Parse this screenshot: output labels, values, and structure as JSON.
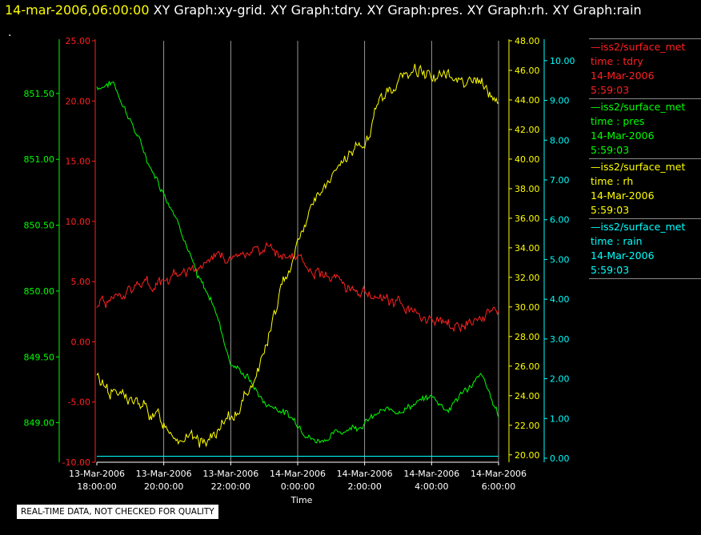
{
  "header": {
    "timestamp": "14-mar-2006,06:00:00",
    "graph_labels": "XY Graph:xy-grid.  XY Graph:tdry.  XY Graph:pres.  XY Graph:rh.  XY Graph:rain",
    "dot": "."
  },
  "colors": {
    "tdry": "#ff2020",
    "pres": "#00ff00",
    "rh": "#ffff00",
    "rain": "#00ffff",
    "grid": "#bbbbbb"
  },
  "legend": [
    {
      "source": "iss2/surface_met",
      "label": "time : tdry",
      "date": "14-Mar-2006",
      "time": "5:59:03"
    },
    {
      "source": "iss2/surface_met",
      "label": "time : pres",
      "date": "14-Mar-2006",
      "time": "5:59:03"
    },
    {
      "source": "iss2/surface_met",
      "label": "time : rh",
      "date": "14-Mar-2006",
      "time": "5:59:03"
    },
    {
      "source": "iss2/surface_met",
      "label": "time : rain",
      "date": "14-Mar-2006",
      "time": "5:59:03"
    }
  ],
  "note": "REAL-TIME DATA, NOT CHECKED FOR QUALITY",
  "chart_data": {
    "type": "line",
    "xlabel": "Time",
    "xlim": [
      "13-Mar-2006 18:00:00",
      "14-Mar-2006 6:00:00"
    ],
    "x_ticks": [
      {
        "d": "13-Mar-2006",
        "t": "18:00:00"
      },
      {
        "d": "13-Mar-2006",
        "t": "20:00:00"
      },
      {
        "d": "13-Mar-2006",
        "t": "22:00:00"
      },
      {
        "d": "14-Mar-2006",
        "t": "0:00:00"
      },
      {
        "d": "14-Mar-2006",
        "t": "2:00:00"
      },
      {
        "d": "14-Mar-2006",
        "t": "4:00:00"
      },
      {
        "d": "14-Mar-2006",
        "t": "6:00:00"
      }
    ],
    "grid": "vertical",
    "axes": {
      "tdry": {
        "range": [
          -10,
          25
        ],
        "ticks": [
          "-10.00",
          "-5.00",
          "0.00",
          "5.00",
          "10.00",
          "15.00",
          "20.00",
          "25.00"
        ]
      },
      "pres": {
        "range": [
          848.7,
          851.9
        ],
        "ticks": [
          "849.00",
          "849.50",
          "850.00",
          "850.50",
          "851.00",
          "851.50"
        ]
      },
      "rh": {
        "range": [
          19.5,
          48.0
        ],
        "ticks": [
          "20.00",
          "22.00",
          "24.00",
          "26.00",
          "28.00",
          "30.00",
          "32.00",
          "34.00",
          "36.00",
          "38.00",
          "40.00",
          "42.00",
          "44.00",
          "46.00",
          "48.00"
        ]
      },
      "rain": {
        "range": [
          -0.1,
          10.5
        ],
        "ticks": [
          "0.00",
          "1.00",
          "2.00",
          "3.00",
          "4.00",
          "5.00",
          "6.00",
          "7.00",
          "8.00",
          "9.00",
          "10.00"
        ]
      }
    },
    "x_hours": [
      0,
      0.5,
      1,
      1.5,
      2,
      2.5,
      3,
      3.5,
      4,
      4.5,
      5,
      5.5,
      6,
      6.5,
      7,
      7.5,
      8,
      8.5,
      9,
      9.5,
      10,
      10.5,
      11,
      11.5,
      12
    ],
    "series": [
      {
        "name": "tdry",
        "values": [
          3.0,
          3.7,
          4.3,
          4.8,
          5.2,
          5.8,
          6.2,
          6.7,
          7.0,
          7.4,
          7.7,
          7.4,
          7.0,
          6.0,
          5.3,
          4.6,
          4.0,
          3.5,
          3.0,
          2.6,
          1.6,
          1.3,
          1.5,
          1.8,
          2.4
        ]
      },
      {
        "name": "pres",
        "values": [
          851.55,
          851.58,
          851.3,
          851.0,
          850.75,
          850.5,
          850.1,
          849.9,
          849.45,
          849.35,
          849.15,
          849.1,
          849.0,
          848.86,
          848.9,
          848.96,
          849.0,
          849.08,
          849.1,
          849.14,
          849.2,
          849.1,
          849.25,
          849.35,
          849.05
        ]
      },
      {
        "name": "rh",
        "values": [
          25.2,
          24.3,
          23.7,
          23.0,
          22.2,
          21.2,
          20.8,
          21.3,
          22.3,
          24.2,
          27.0,
          31.0,
          34.5,
          37.3,
          38.5,
          40.2,
          41.0,
          44.0,
          45.3,
          46.0,
          45.8,
          45.5,
          45.5,
          45.0,
          43.8
        ]
      },
      {
        "name": "rain",
        "values": [
          0.05,
          0.05,
          0.05,
          0.05,
          0.05,
          0.05,
          0.05,
          0.05,
          0.05,
          0.05,
          0.05,
          0.05,
          0.05,
          0.05,
          0.05,
          0.05,
          0.05,
          0.05,
          0.05,
          0.05,
          0.05,
          0.05,
          0.05,
          0.05,
          0.05
        ]
      }
    ]
  }
}
